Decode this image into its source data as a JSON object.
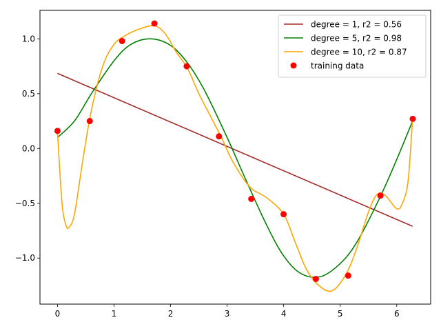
{
  "chart_data": {
    "type": "line",
    "title": "",
    "xlabel": "",
    "ylabel": "",
    "xlim": [
      -0.31,
      6.6
    ],
    "ylim": [
      -1.42,
      1.26
    ],
    "xticks": [
      0,
      1,
      2,
      3,
      4,
      5,
      6
    ],
    "yticks": [
      -1.0,
      -0.5,
      0.0,
      0.5,
      1.0
    ],
    "xtick_labels": [
      "0",
      "1",
      "2",
      "3",
      "4",
      "5",
      "6"
    ],
    "ytick_labels": [
      "−1.0",
      "−0.5",
      "0.0",
      "0.5",
      "1.0"
    ],
    "grid": false,
    "legend_position": "top-right",
    "series": [
      {
        "name": "degree = 1, r2 = 0.56",
        "kind": "line",
        "color": "#a52a2a",
        "x": [
          0.0,
          6.28
        ],
        "y": [
          0.685,
          -0.71
        ]
      },
      {
        "name": "degree = 5, r2 = 0.98",
        "kind": "line",
        "color": "#008000",
        "x": [
          0.0,
          0.3,
          0.6,
          1.0,
          1.3,
          1.65,
          2.0,
          2.3,
          2.6,
          3.0,
          3.3,
          3.7,
          4.0,
          4.3,
          4.65,
          5.0,
          5.3,
          5.7,
          6.0,
          6.28
        ],
        "y": [
          0.1,
          0.25,
          0.5,
          0.8,
          0.95,
          1.0,
          0.94,
          0.78,
          0.53,
          0.1,
          -0.25,
          -0.7,
          -0.98,
          -1.14,
          -1.17,
          -1.05,
          -0.85,
          -0.45,
          -0.1,
          0.25
        ]
      },
      {
        "name": "degree = 10, r2 = 0.87",
        "kind": "line",
        "color": "#ffa500",
        "x": [
          0.0,
          0.08,
          0.15,
          0.2,
          0.3,
          0.45,
          0.6,
          0.8,
          1.0,
          1.2,
          1.4,
          1.7,
          1.9,
          2.1,
          2.3,
          2.5,
          2.7,
          2.9,
          3.1,
          3.4,
          3.7,
          4.0,
          4.2,
          4.4,
          4.6,
          4.85,
          5.1,
          5.3,
          5.5,
          5.65,
          5.8,
          6.0,
          6.1,
          6.2,
          6.28
        ],
        "y": [
          0.15,
          -0.5,
          -0.7,
          -0.72,
          -0.6,
          -0.1,
          0.35,
          0.75,
          0.95,
          1.03,
          1.08,
          1.12,
          1.05,
          0.88,
          0.73,
          0.5,
          0.3,
          0.1,
          -0.12,
          -0.35,
          -0.45,
          -0.6,
          -0.85,
          -1.1,
          -1.24,
          -1.3,
          -1.15,
          -0.9,
          -0.58,
          -0.42,
          -0.43,
          -0.55,
          -0.5,
          -0.3,
          0.27
        ]
      },
      {
        "name": "training data",
        "kind": "scatter",
        "color": "#ff0000",
        "x": [
          0.0,
          0.571,
          1.142,
          1.714,
          2.285,
          2.856,
          3.427,
          3.999,
          4.57,
          5.141,
          5.712,
          6.283
        ],
        "y": [
          0.16,
          0.25,
          0.98,
          1.14,
          0.75,
          0.11,
          -0.46,
          -0.6,
          -1.19,
          -1.16,
          -0.43,
          0.27
        ]
      }
    ]
  }
}
